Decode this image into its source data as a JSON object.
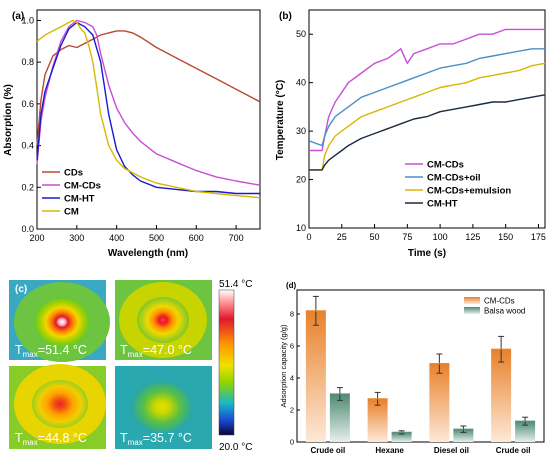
{
  "chart_data": [
    {
      "panel": "(a)",
      "type": "line",
      "xlabel": "Wavelength (nm)",
      "ylabel": "Absorption (%)",
      "xlim": [
        200,
        760
      ],
      "ylim": [
        0,
        1.05
      ],
      "xticks": [
        200,
        300,
        400,
        500,
        600,
        700
      ],
      "yticks": [
        0.0,
        0.2,
        0.4,
        0.6,
        0.8,
        1.0
      ],
      "legend_position": "bottom-left",
      "series": [
        {
          "name": "CDs",
          "color": "#b84a30",
          "x": [
            200,
            210,
            220,
            240,
            260,
            280,
            300,
            320,
            340,
            360,
            380,
            400,
            420,
            440,
            460,
            500,
            550,
            600,
            650,
            700,
            760
          ],
          "y": [
            0.4,
            0.62,
            0.74,
            0.83,
            0.86,
            0.88,
            0.87,
            0.89,
            0.91,
            0.93,
            0.94,
            0.95,
            0.95,
            0.94,
            0.92,
            0.87,
            0.82,
            0.77,
            0.72,
            0.67,
            0.61
          ]
        },
        {
          "name": "CM-CDs",
          "color": "#c84ed6",
          "x": [
            200,
            210,
            220,
            240,
            260,
            280,
            300,
            320,
            340,
            350,
            360,
            380,
            400,
            420,
            440,
            460,
            500,
            550,
            600,
            650,
            700,
            760
          ],
          "y": [
            0.31,
            0.52,
            0.63,
            0.78,
            0.9,
            0.97,
            1.0,
            0.99,
            0.97,
            0.93,
            0.84,
            0.69,
            0.58,
            0.51,
            0.46,
            0.42,
            0.36,
            0.32,
            0.28,
            0.25,
            0.23,
            0.21
          ]
        },
        {
          "name": "CM-HT",
          "color": "#1a1ad0",
          "x": [
            200,
            210,
            220,
            240,
            260,
            280,
            300,
            320,
            340,
            360,
            380,
            400,
            420,
            440,
            460,
            500,
            550,
            600,
            650,
            700,
            760
          ],
          "y": [
            0.33,
            0.55,
            0.66,
            0.77,
            0.88,
            0.96,
            0.99,
            0.97,
            0.93,
            0.8,
            0.55,
            0.38,
            0.3,
            0.26,
            0.23,
            0.2,
            0.19,
            0.18,
            0.18,
            0.17,
            0.17
          ]
        },
        {
          "name": "CM",
          "color": "#d6b800",
          "x": [
            200,
            220,
            240,
            260,
            280,
            290,
            300,
            310,
            320,
            330,
            340,
            350,
            360,
            380,
            400,
            420,
            440,
            460,
            500,
            550,
            600,
            650,
            700,
            760
          ],
          "y": [
            0.9,
            0.93,
            0.95,
            0.97,
            0.99,
            1.0,
            0.99,
            0.96,
            0.94,
            0.88,
            0.8,
            0.68,
            0.55,
            0.4,
            0.33,
            0.29,
            0.27,
            0.25,
            0.22,
            0.2,
            0.18,
            0.17,
            0.16,
            0.15
          ]
        }
      ]
    },
    {
      "panel": "(b)",
      "type": "line",
      "xlabel": "Time (s)",
      "ylabel": "Temperature (°C)",
      "xlim": [
        0,
        180
      ],
      "ylim": [
        10,
        55
      ],
      "xticks": [
        0,
        25,
        50,
        75,
        100,
        125,
        150,
        175
      ],
      "yticks": [
        10,
        20,
        30,
        40,
        50
      ],
      "legend_position": "bottom-right",
      "series": [
        {
          "name": "CM-CDs",
          "color": "#c84ed6",
          "x": [
            0,
            5,
            10,
            12,
            15,
            20,
            25,
            30,
            40,
            50,
            60,
            70,
            75,
            80,
            90,
            100,
            110,
            120,
            130,
            140,
            150,
            160,
            170,
            175,
            180
          ],
          "y": [
            26,
            26,
            26,
            29,
            33,
            36,
            38,
            40,
            42,
            44,
            45,
            47,
            44,
            46,
            47,
            48,
            48,
            49,
            50,
            50,
            51,
            51,
            51,
            51,
            51
          ]
        },
        {
          "name": "CM-CDs+oil",
          "color": "#4a90c8",
          "x": [
            0,
            10,
            12,
            15,
            20,
            25,
            30,
            40,
            50,
            60,
            70,
            80,
            90,
            100,
            110,
            120,
            130,
            140,
            150,
            160,
            170,
            180
          ],
          "y": [
            28,
            27,
            29,
            31,
            33,
            34,
            35,
            37,
            38,
            39,
            40,
            41,
            42,
            43,
            43.5,
            44,
            45,
            45.5,
            46,
            46.5,
            47,
            47
          ]
        },
        {
          "name": "CM-CDs+emulsion",
          "color": "#d6b800",
          "x": [
            0,
            10,
            12,
            15,
            20,
            25,
            30,
            40,
            50,
            60,
            70,
            80,
            90,
            100,
            110,
            120,
            130,
            140,
            150,
            160,
            170,
            180
          ],
          "y": [
            22,
            22,
            25,
            27,
            29,
            30,
            31,
            33,
            34,
            35,
            36,
            37,
            38,
            39,
            39.5,
            40,
            41,
            41.5,
            42,
            42.5,
            43.5,
            44
          ]
        },
        {
          "name": "CM-HT",
          "color": "#1a2a40",
          "x": [
            0,
            10,
            12,
            15,
            20,
            25,
            30,
            40,
            50,
            60,
            70,
            80,
            90,
            100,
            110,
            120,
            130,
            140,
            150,
            160,
            170,
            180
          ],
          "y": [
            22,
            22,
            23,
            24,
            25,
            26,
            27,
            28.5,
            29.5,
            30.5,
            31.5,
            32.5,
            33,
            34,
            34.5,
            35,
            35.5,
            36,
            36,
            36.5,
            37,
            37.5
          ]
        }
      ]
    },
    {
      "panel": "(c)",
      "type": "heatmap",
      "colorbar_max": "51.4 °C",
      "colorbar_min": "20.0 °C",
      "images": [
        {
          "label": "T",
          "sub": "max",
          "value": "=51.4 °C"
        },
        {
          "label": "T",
          "sub": "max",
          "value": "=47.0 °C"
        },
        {
          "label": "T",
          "sub": "max",
          "value": "=44.8 °C"
        },
        {
          "label": "T",
          "sub": "max",
          "value": "=35.7 °C"
        }
      ]
    },
    {
      "panel": "(d)",
      "type": "bar",
      "ylabel": "Adsorption capacity (g/g)",
      "ylim": [
        0,
        9.5
      ],
      "yticks": [
        0,
        2,
        4,
        6,
        8
      ],
      "categories": [
        "Crude oil",
        "Hexane",
        "Diesel oil",
        "Crude oil"
      ],
      "legend_position": "top-right",
      "series": [
        {
          "name": "CM-CDs",
          "color": "#e8892f",
          "values": [
            8.2,
            2.7,
            4.9,
            5.8
          ],
          "errors": [
            0.9,
            0.4,
            0.6,
            0.8
          ]
        },
        {
          "name": "Balsa wood",
          "color": "#5d8f7b",
          "values": [
            3.0,
            0.6,
            0.8,
            1.3
          ],
          "errors": [
            0.4,
            0.1,
            0.2,
            0.25
          ]
        }
      ]
    }
  ]
}
